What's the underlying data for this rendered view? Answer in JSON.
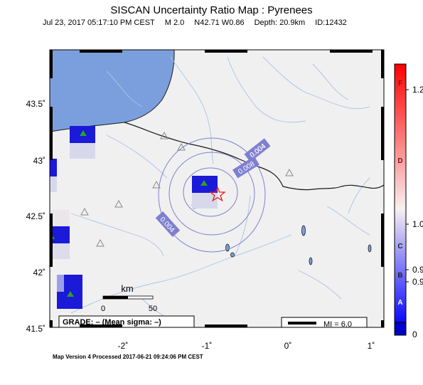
{
  "header": {
    "title": "SISCAN Uncertainty Ratio Map : Pyrenees",
    "date": "Jul 23, 2017 05:17:10 PM CEST",
    "magnitude": "M 2.0",
    "location": "N42.71 W0.86",
    "depth": "Depth: 20.9km",
    "event_id": "ID:12432"
  },
  "map": {
    "lat_labels": [
      "43.5˚",
      "43˚",
      "42.5˚",
      "42˚",
      "41.5˚"
    ],
    "lon_labels": [
      "-2˚",
      "-1˚",
      "0˚",
      "1˚"
    ],
    "contour_labels": [
      "0.004",
      "0.008",
      "0.004"
    ],
    "scale_bar": {
      "unit": "km",
      "ticks": [
        "0",
        "50"
      ]
    },
    "grade_box": "GRADE: – (Mean sigma: –)",
    "mi_legend": "MI = 6.0",
    "epicenter_icon": "star-icon",
    "station_icon": "triangle-icon",
    "colors": {
      "sea": "#7a9fdc",
      "land": "#f0f0f0",
      "rivers": "#a9c3e6",
      "contour": "#7f7fd0",
      "epicenter": "#e02020",
      "cell_blue": "#1212d8"
    }
  },
  "colorbar": {
    "labels_right": [
      "1.2",
      "1.0",
      "0.9",
      "0.9",
      "0"
    ],
    "labels_left": [
      "F",
      "D",
      "C",
      "B",
      "A"
    ]
  },
  "footer": "Map Version 4 Processed 2017-06-21 09:24:06 PM CEST"
}
